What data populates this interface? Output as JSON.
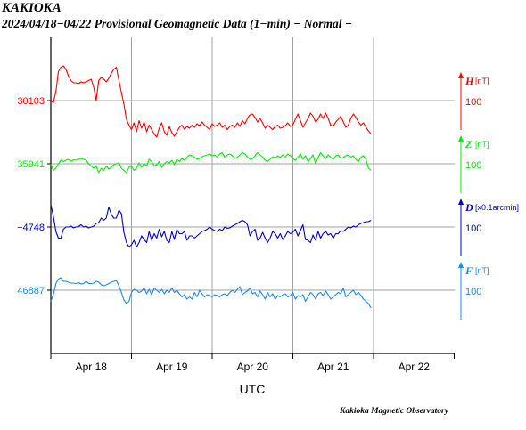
{
  "header": {
    "station": "KAKIOKA",
    "subtitle": "2024/04/18−04/22  Provisional Geomagnetic Data (1−min)  − Normal −"
  },
  "footer": {
    "credit": "Kakioka Magnetic Observatory"
  },
  "chart_data": {
    "type": "line",
    "xlabel": "UTC",
    "x_ticks": [
      "Apr 18",
      "Apr 19",
      "Apr 20",
      "Apr 21",
      "Apr 22"
    ],
    "x_range_days": [
      0,
      4
    ],
    "grid": true,
    "series": [
      {
        "name": "H",
        "unit": "[nT]",
        "baseline": "30103",
        "scale": "100",
        "color": "#ff0000",
        "samples_per_day": 32,
        "values": [
          0,
          -5,
          20,
          65,
          75,
          78,
          70,
          55,
          45,
          40,
          40,
          38,
          42,
          40,
          42,
          45,
          48,
          30,
          0,
          45,
          52,
          48,
          42,
          50,
          62,
          70,
          75,
          45,
          18,
          -8,
          -42,
          -55,
          -65,
          -50,
          -70,
          -45,
          -62,
          -48,
          -70,
          -55,
          -65,
          -75,
          -82,
          -62,
          -50,
          -70,
          -78,
          -58,
          -72,
          -80,
          -70,
          -60,
          -55,
          -65,
          -58,
          -62,
          -55,
          -60,
          -52,
          -56,
          -48,
          -55,
          -60,
          -65,
          -52,
          -58,
          -55,
          -50,
          -60,
          -55,
          -65,
          -58,
          -55,
          -60,
          -50,
          -58,
          -45,
          -52,
          -40,
          -32,
          -30,
          -38,
          -48,
          -40,
          -50,
          -62,
          -55,
          -60,
          -65,
          -58,
          -55,
          -62,
          -60,
          -56,
          -50,
          -58,
          -55,
          -42,
          -30,
          -45,
          -60,
          -50,
          -40,
          -28,
          -35,
          -48,
          -42,
          -30,
          -40,
          -28,
          -40,
          -55,
          -58,
          -48,
          -42,
          -35,
          -48,
          -60,
          -55,
          -40,
          -30,
          -38,
          -48,
          -55,
          -50,
          -60,
          -68,
          -75
        ]
      },
      {
        "name": "Z",
        "unit": "[nT]",
        "baseline": "35941",
        "scale": "100",
        "color": "#00ee00",
        "samples_per_day": 32,
        "values": [
          0,
          -15,
          -10,
          0,
          8,
          5,
          8,
          10,
          6,
          9,
          8,
          10,
          12,
          10,
          8,
          0,
          -5,
          -10,
          -5,
          -20,
          -10,
          -15,
          -5,
          -12,
          -8,
          -2,
          0,
          2,
          -10,
          -15,
          -20,
          -8,
          -5,
          -15,
          -10,
          2,
          -8,
          0,
          -5,
          10,
          5,
          -5,
          -2,
          5,
          -8,
          0,
          5,
          2,
          8,
          -2,
          10,
          5,
          12,
          8,
          15,
          20,
          18,
          15,
          10,
          12,
          16,
          18,
          20,
          22,
          18,
          20,
          15,
          22,
          25,
          15,
          20,
          22,
          18,
          12,
          15,
          20,
          25,
          22,
          15,
          10,
          12,
          18,
          25,
          20,
          15,
          8,
          5,
          10,
          16,
          12,
          18,
          14,
          20,
          15,
          22,
          18,
          12,
          8,
          15,
          22,
          10,
          18,
          5,
          12,
          20,
          0,
          14,
          25,
          18,
          12,
          20,
          15,
          10,
          18,
          20,
          12,
          14,
          18,
          20,
          15,
          18,
          10,
          5,
          15,
          18,
          10,
          -10,
          -15
        ]
      },
      {
        "name": "D",
        "unit": "[x0.1arcmin]",
        "baseline": "−4748",
        "scale": "100",
        "color": "#0000cc",
        "samples_per_day": 32,
        "values": [
          50,
          25,
          -10,
          -25,
          -25,
          -5,
          0,
          0,
          2,
          -2,
          0,
          1,
          5,
          0,
          2,
          -2,
          0,
          2,
          8,
          10,
          20,
          15,
          20,
          45,
          28,
          20,
          20,
          38,
          30,
          -12,
          -35,
          -45,
          -40,
          -30,
          -45,
          -35,
          -20,
          -28,
          -35,
          -10,
          -30,
          -15,
          -25,
          -5,
          -22,
          -10,
          -30,
          -35,
          -10,
          -28,
          -5,
          -15,
          -15,
          -10,
          -30,
          -20,
          -20,
          -25,
          -20,
          -15,
          -10,
          -8,
          -5,
          0,
          -5,
          -8,
          -10,
          -5,
          -8,
          0,
          -3,
          -2,
          2,
          5,
          8,
          12,
          15,
          12,
          5,
          -20,
          -10,
          -5,
          -30,
          -25,
          -12,
          -25,
          -35,
          -25,
          -10,
          -15,
          -25,
          -15,
          -28,
          -20,
          -10,
          -15,
          -12,
          -5,
          -20,
          -8,
          5,
          -28,
          -30,
          -35,
          -18,
          -30,
          -10,
          -25,
          -15,
          -10,
          -18,
          -15,
          -25,
          -15,
          -15,
          -8,
          -10,
          -5,
          0,
          -2,
          2,
          0,
          5,
          8,
          10,
          12,
          12,
          15
        ]
      },
      {
        "name": "F",
        "unit": "[nT]",
        "baseline": "46887",
        "scale": "100",
        "color": "#1e88e5",
        "samples_per_day": 32,
        "values": [
          -25,
          -10,
          15,
          25,
          28,
          20,
          20,
          18,
          16,
          16,
          15,
          17,
          14,
          15,
          20,
          15,
          15,
          16,
          20,
          18,
          12,
          10,
          12,
          15,
          18,
          20,
          22,
          10,
          -5,
          -22,
          -30,
          -25,
          -5,
          2,
          0,
          -5,
          -2,
          5,
          -8,
          2,
          -10,
          5,
          0,
          -5,
          2,
          -8,
          0,
          -5,
          5,
          -5,
          0,
          -8,
          -15,
          -10,
          -20,
          -15,
          -20,
          -5,
          -15,
          0,
          -8,
          -15,
          -10,
          -12,
          -15,
          -10,
          -12,
          -15,
          -10,
          -8,
          -12,
          -5,
          0,
          -5,
          2,
          8,
          -10,
          -5,
          -2,
          5,
          -8,
          -5,
          -15,
          -2,
          -10,
          -20,
          -5,
          -15,
          -8,
          -20,
          -12,
          -15,
          -10,
          -8,
          -15,
          -12,
          -5,
          -20,
          -12,
          -15,
          -10,
          -25,
          -15,
          -5,
          -10,
          -20,
          -8,
          -5,
          -12,
          -2,
          -10,
          -20,
          -15,
          -10,
          -5,
          -8,
          5,
          -15,
          -10,
          -5,
          0,
          -10,
          -5,
          -12,
          -20,
          -25,
          -30,
          -40
        ]
      }
    ]
  }
}
